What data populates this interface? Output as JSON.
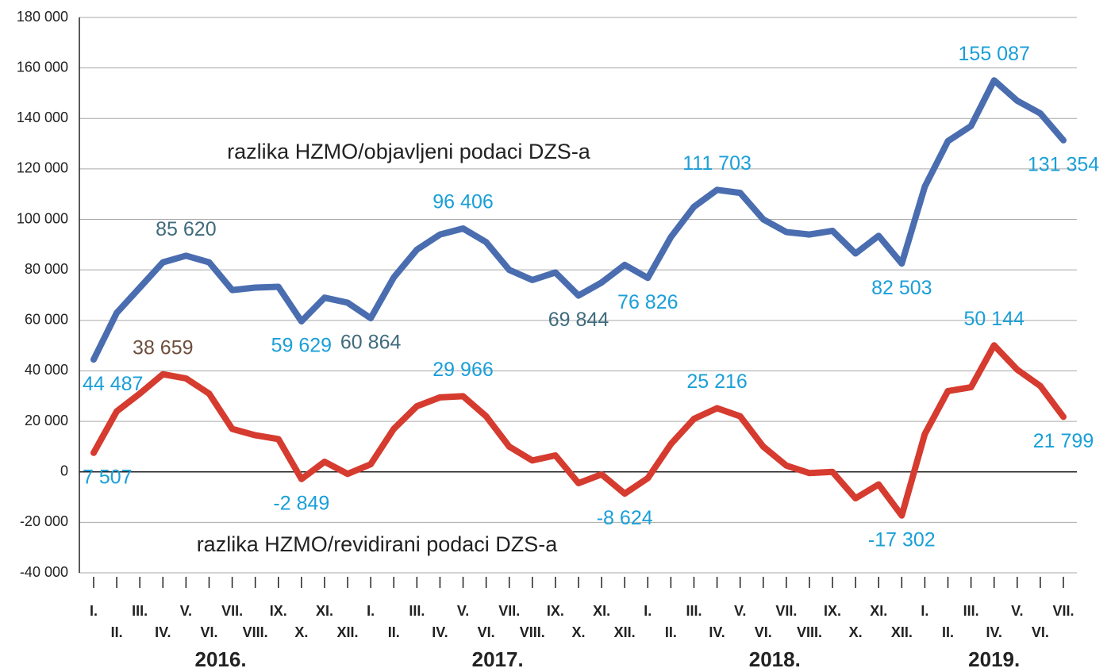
{
  "chart_data": {
    "type": "line",
    "categories": [
      "I.",
      "II.",
      "III.",
      "IV.",
      "V.",
      "VI.",
      "VII.",
      "VIII.",
      "IX.",
      "X.",
      "XI.",
      "XII.",
      "I.",
      "II.",
      "III.",
      "IV.",
      "V.",
      "VI.",
      "VII.",
      "VIII.",
      "IX.",
      "X.",
      "XI.",
      "XII.",
      "I.",
      "II.",
      "III.",
      "IV.",
      "V.",
      "VI.",
      "VII.",
      "VIII.",
      "IX.",
      "X.",
      "XI.",
      "XII.",
      "I.",
      "II.",
      "III.",
      "IV.",
      "V.",
      "VI.",
      "VII."
    ],
    "category_colors": [
      "#1a9fd8",
      null,
      null,
      "#6e4e3c",
      "#3f6b7c",
      null,
      null,
      null,
      null,
      "#1a9fd8",
      null,
      null,
      "#3f6b7c",
      null,
      null,
      null,
      "#1a9fd8",
      null,
      null,
      null,
      null,
      "#3f6b7c",
      null,
      "#1a9fd8",
      null,
      null,
      null,
      "#1a9fd8",
      null,
      null,
      null,
      null,
      null,
      null,
      null,
      "#1a9fd8",
      null,
      null,
      null,
      "#1a9fd8",
      null,
      null,
      "#1a9fd8"
    ],
    "years": [
      "2016.",
      "2017.",
      "2018.",
      "2019."
    ],
    "ylim": [
      -40000,
      180000
    ],
    "yticks": [
      {
        "value": -40000,
        "label": "-40 000"
      },
      {
        "value": -20000,
        "label": "-20 000"
      },
      0,
      {
        "value": 20000,
        "label": "20 000"
      },
      {
        "value": 40000,
        "label": "40 000"
      },
      {
        "value": 60000,
        "label": "60 000"
      },
      {
        "value": 80000,
        "label": "80 000"
      },
      {
        "value": 100000,
        "label": "100 000"
      },
      {
        "value": 120000,
        "label": "120 000"
      },
      {
        "value": 140000,
        "label": "140 000"
      },
      {
        "value": 160000,
        "label": "160 000"
      },
      {
        "value": 180000,
        "label": "180 000"
      }
    ],
    "grid": true,
    "series": [
      {
        "name": "razlika HZMO/objavljeni podaci DZS-a",
        "color": "#4a6db0",
        "values": [
          44487,
          63000,
          73000,
          83000,
          85620,
          83000,
          72000,
          73000,
          73300,
          59629,
          69000,
          67000,
          60864,
          77000,
          88000,
          94000,
          96406,
          91000,
          80000,
          76000,
          79000,
          69844,
          75000,
          82000,
          76826,
          93000,
          105000,
          111703,
          110500,
          100000,
          95000,
          94000,
          95500,
          86500,
          93500,
          82503,
          113000,
          131000,
          137000,
          155087,
          147000,
          142000,
          131354
        ],
        "value_labels": [
          "44 487",
          null,
          null,
          null,
          "85 620",
          null,
          null,
          null,
          null,
          "59 629",
          null,
          null,
          "60 864",
          null,
          null,
          null,
          "96 406",
          null,
          null,
          null,
          null,
          "69 844",
          null,
          null,
          "76 826",
          null,
          null,
          "111 703",
          null,
          null,
          null,
          null,
          null,
          null,
          null,
          "82 503",
          null,
          null,
          null,
          "155 087",
          null,
          null,
          "131 354"
        ],
        "value_label_colors": [
          "#1a9fd8",
          null,
          null,
          null,
          "#3f6b7c",
          null,
          null,
          null,
          null,
          "#1a9fd8",
          null,
          null,
          "#3f6b7c",
          null,
          null,
          null,
          "#1a9fd8",
          null,
          null,
          null,
          null,
          "#3f6b7c",
          null,
          null,
          "#1a9fd8",
          null,
          null,
          "#1a9fd8",
          null,
          null,
          null,
          null,
          null,
          null,
          null,
          "#1a9fd8",
          null,
          null,
          null,
          "#1a9fd8",
          null,
          null,
          "#1a9fd8"
        ]
      },
      {
        "name": "razlika HZMO/revidirani podaci DZS-a",
        "color": "#d63b2f",
        "values": [
          7507,
          24000,
          31000,
          38659,
          37000,
          31000,
          17000,
          14500,
          13000,
          -2849,
          4000,
          -800,
          3000,
          17000,
          26000,
          29500,
          29966,
          22000,
          10000,
          4500,
          6500,
          -4500,
          -1000,
          -8624,
          -2500,
          11000,
          21000,
          25216,
          22000,
          10000,
          2500,
          -500,
          0,
          -10500,
          -5000,
          -17302,
          15000,
          32000,
          33500,
          50144,
          40500,
          34000,
          21799
        ],
        "value_labels": [
          "7 507",
          null,
          null,
          "38 659",
          null,
          null,
          null,
          null,
          null,
          "-2 849",
          null,
          null,
          null,
          null,
          null,
          null,
          "29 966",
          null,
          null,
          null,
          null,
          null,
          null,
          "-8 624",
          null,
          null,
          null,
          "25 216",
          null,
          null,
          null,
          null,
          null,
          null,
          null,
          "-17 302",
          null,
          null,
          null,
          "50 144",
          null,
          null,
          "21 799"
        ],
        "value_label_colors": [
          "#1a9fd8",
          null,
          null,
          "#6e4e3c",
          null,
          null,
          null,
          null,
          null,
          "#1a9fd8",
          null,
          null,
          null,
          null,
          null,
          null,
          "#1a9fd8",
          null,
          null,
          null,
          null,
          null,
          null,
          "#1a9fd8",
          null,
          null,
          null,
          "#1a9fd8",
          null,
          null,
          null,
          null,
          null,
          null,
          null,
          "#1a9fd8",
          null,
          null,
          null,
          "#1a9fd8",
          null,
          null,
          "#1a9fd8"
        ]
      }
    ]
  }
}
